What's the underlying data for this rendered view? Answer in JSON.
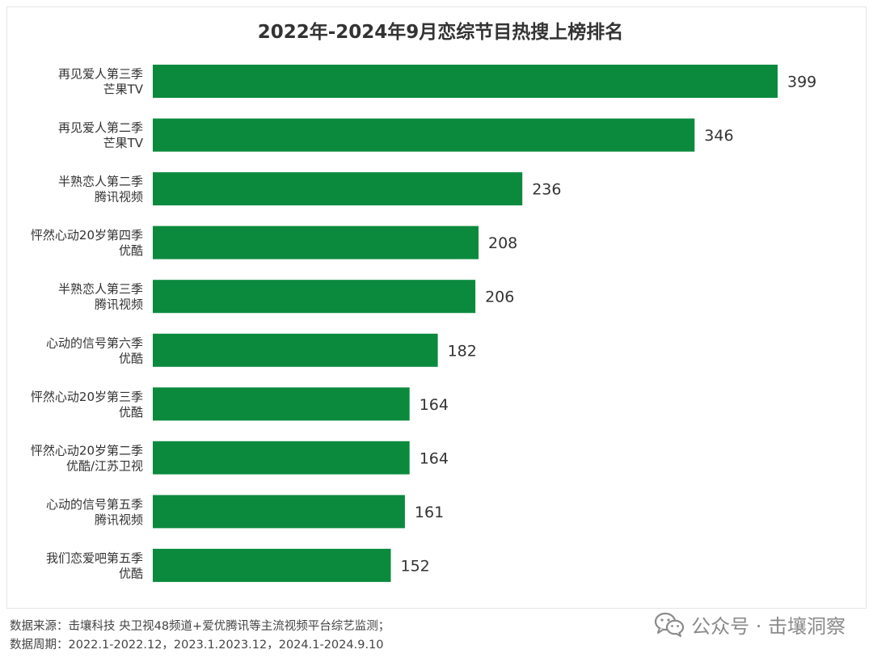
{
  "chart_data": {
    "type": "bar",
    "orientation": "horizontal",
    "title": "2022年-2024年9月恋综节目热搜上榜排名",
    "categories": [
      [
        "再见爱人第三季",
        "芒果TV"
      ],
      [
        "再见爱人第二季",
        "芒果TV"
      ],
      [
        "半熟恋人第二季",
        "腾讯视频"
      ],
      [
        "怦然心动20岁第四季",
        "优酷"
      ],
      [
        "半熟恋人第三季",
        "腾讯视频"
      ],
      [
        "心动的信号第六季",
        "优酷"
      ],
      [
        "怦然心动20岁第三季",
        "优酷"
      ],
      [
        "怦然心动20岁第二季",
        "优酷/江苏卫视"
      ],
      [
        "心动的信号第五季",
        "腾讯视频"
      ],
      [
        "我们恋爱吧第五季",
        "优酷"
      ]
    ],
    "values": [
      399,
      346,
      236,
      208,
      206,
      182,
      164,
      164,
      161,
      152
    ],
    "value_labels": [
      "399",
      "346",
      "236",
      "208",
      "206",
      "182",
      "164",
      "164",
      "161",
      "152"
    ],
    "xlim": [
      0,
      399
    ],
    "bar_color": "#0b8a3e",
    "grid": false,
    "legend": "none"
  },
  "footer": {
    "source": "数据来源：击壤科技  央卫视48频道+爱优腾讯等主流视频平台综艺监测；",
    "period": "数据周期：2022.1-2022.12，2023.1.2023.12，2024.1-2024.9.10"
  },
  "watermark": {
    "text": "公众号 · 击壤洞察",
    "icon": "wechat-icon"
  }
}
